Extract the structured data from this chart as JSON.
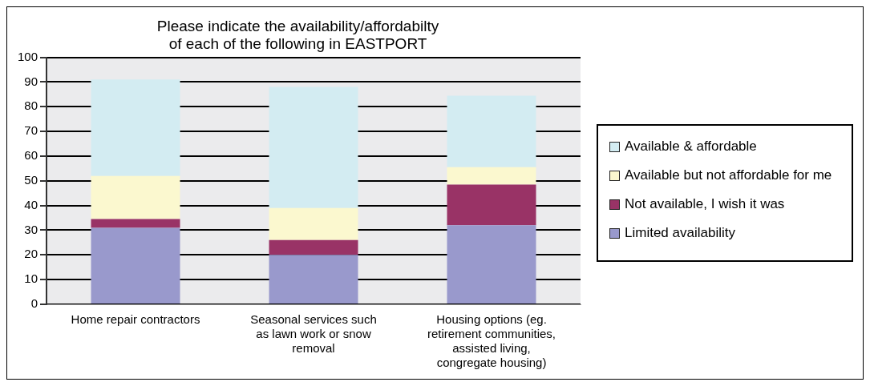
{
  "chart_data": {
    "type": "bar",
    "title": "Please indicate the availability/affordabilty\nof each of the following in EASTPORT",
    "categories": [
      "Home repair contractors",
      "Seasonal services such as lawn work or snow removal",
      "Housing options (eg. retirement communities, assisted living, congregate housing)"
    ],
    "stacked": true,
    "ylim": [
      0,
      100
    ],
    "yticks": [
      0,
      10,
      20,
      30,
      40,
      50,
      60,
      70,
      80,
      90,
      100
    ],
    "grid": "y",
    "legend": "right",
    "series": [
      {
        "name": "Limited availability",
        "color": "#9999cc",
        "values": [
          31,
          20,
          32
        ]
      },
      {
        "name": "Not available, I wish it was",
        "color": "#993366",
        "values": [
          3.5,
          6,
          16.5
        ]
      },
      {
        "name": "Available but not affordable for me",
        "color": "#fbf8cf",
        "values": [
          17.5,
          13,
          7
        ]
      },
      {
        "name": "Available & affordable",
        "color": "#d3ecf2",
        "values": [
          39,
          49,
          29
        ]
      }
    ]
  }
}
